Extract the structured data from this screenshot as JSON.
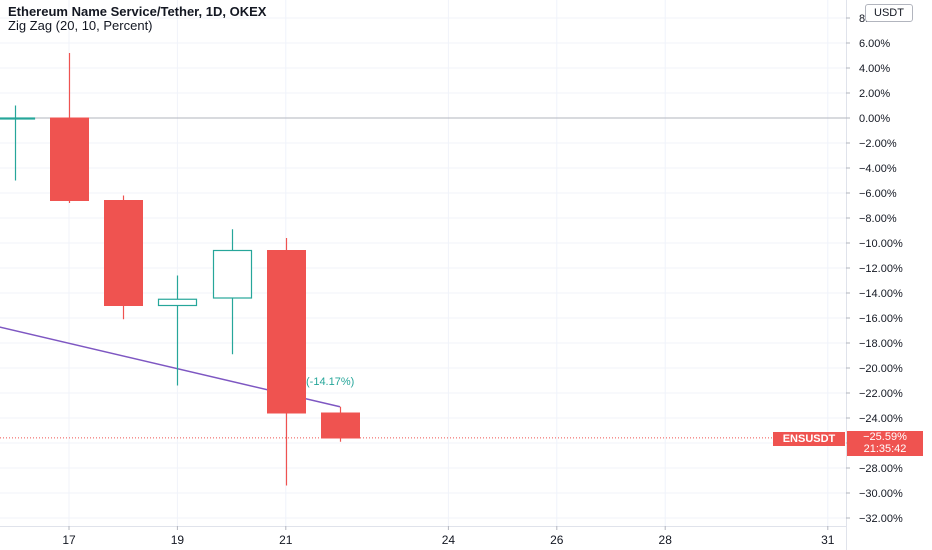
{
  "header": {
    "title": "Ethereum Name Service/Tether, 1D, OKEX",
    "indicator": "Zig Zag (20, 10, Percent)",
    "currency": "USDT"
  },
  "badges": {
    "symbol": "ENSUSDT",
    "price_change": "−25.59%",
    "countdown": "21:35:42"
  },
  "colors": {
    "up": "#26a69a",
    "down": "#ef5350",
    "zigzag": "#7e57c2",
    "grid": "#f0f3fa",
    "zero_line": "#b2b5be"
  },
  "chart_data": {
    "type": "candlestick",
    "title": "Ethereum Name Service/Tether, 1D, OKEX",
    "y_unit": "percent",
    "ylim": [
      -33,
      8.5
    ],
    "y_ticks": [
      8,
      6,
      4,
      2,
      0,
      -2,
      -4,
      -6,
      -8,
      -10,
      -12,
      -14,
      -16,
      -18,
      -20,
      -22,
      -24,
      -26,
      -28,
      -30,
      -32
    ],
    "y_tick_labels": [
      "8.00%",
      "6.00%",
      "4.00%",
      "2.00%",
      "0.00%",
      "−2.00%",
      "−4.00%",
      "−6.00%",
      "−8.00%",
      "−10.00%",
      "−12.00%",
      "−14.00%",
      "−16.00%",
      "−18.00%",
      "−20.00%",
      "−22.00%",
      "−24.00%",
      "−26.00%",
      "−28.00%",
      "−30.00%",
      "−32.00%"
    ],
    "x_ticks": [
      17,
      19,
      21,
      24,
      26,
      28,
      31
    ],
    "x_tick_labels": [
      "17",
      "19",
      "21",
      "24",
      "26",
      "28",
      "31"
    ],
    "candles": [
      {
        "day": 16,
        "open": 0.0,
        "high": 1.0,
        "low": -5.0,
        "close": 0.0
      },
      {
        "day": 17,
        "open": 0.0,
        "high": 5.2,
        "low": -6.8,
        "close": -6.6
      },
      {
        "day": 18,
        "open": -6.6,
        "high": -6.2,
        "low": -16.1,
        "close": -15.0
      },
      {
        "day": 19,
        "open": -15.0,
        "high": -12.6,
        "low": -21.4,
        "close": -14.5
      },
      {
        "day": 20,
        "open": -14.4,
        "high": -8.9,
        "low": -18.9,
        "close": -10.6
      },
      {
        "day": 21,
        "open": -10.6,
        "high": -9.6,
        "low": -29.4,
        "close": -23.6
      },
      {
        "day": 22,
        "open": -23.6,
        "high": -23.1,
        "low": -25.9,
        "close": -25.6
      }
    ],
    "last_value": -25.59,
    "zigzag": {
      "points": [
        [
          15.3,
          -16.3
        ],
        [
          22.0,
          -23.1
        ]
      ],
      "label": "(-14.17%)"
    },
    "grid": true
  }
}
